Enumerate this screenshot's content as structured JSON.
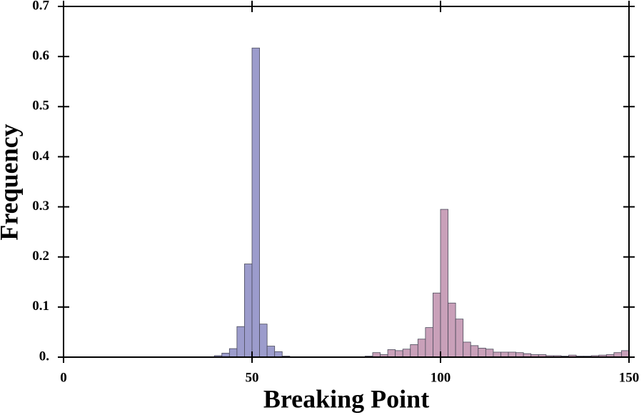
{
  "chart_data": {
    "type": "histogram",
    "x_label": "Breaking Point",
    "y_label": "Frequency",
    "xlim": [
      0,
      150
    ],
    "xticks": [
      0,
      50,
      100,
      150
    ],
    "ylim": [
      0,
      0.7
    ],
    "yticks": [
      {
        "value": 0,
        "label": "0."
      },
      0.1,
      0.2,
      0.3,
      0.4,
      0.5,
      0.6,
      0.7
    ],
    "series": [
      {
        "color": "#9c9ccc",
        "bins": [
          40,
          42,
          44,
          46,
          48,
          50,
          52,
          54,
          56,
          58,
          60
        ],
        "values": [
          0.003,
          0.008,
          0.017,
          0.061,
          0.186,
          0.617,
          0.066,
          0.022,
          0.011,
          0.002
        ]
      },
      {
        "color": "#c9a0b9",
        "bins": [
          80,
          82,
          84,
          86,
          88,
          90,
          92,
          94,
          96,
          98,
          100,
          102,
          104,
          106,
          108,
          110,
          112,
          114,
          116,
          118,
          120,
          122,
          124,
          126,
          128,
          130,
          132,
          134,
          136,
          138,
          140,
          142,
          144,
          146,
          148,
          150
        ],
        "values": [
          0.002,
          0.009,
          0.005,
          0.015,
          0.013,
          0.016,
          0.025,
          0.036,
          0.059,
          0.128,
          0.295,
          0.108,
          0.076,
          0.03,
          0.023,
          0.018,
          0.016,
          0.01,
          0.01,
          0.01,
          0.009,
          0.007,
          0.005,
          0.005,
          0.003,
          0.003,
          0.002,
          0.004,
          0.002,
          0.002,
          0.003,
          0.004,
          0.005,
          0.009,
          0.013
        ]
      }
    ]
  }
}
